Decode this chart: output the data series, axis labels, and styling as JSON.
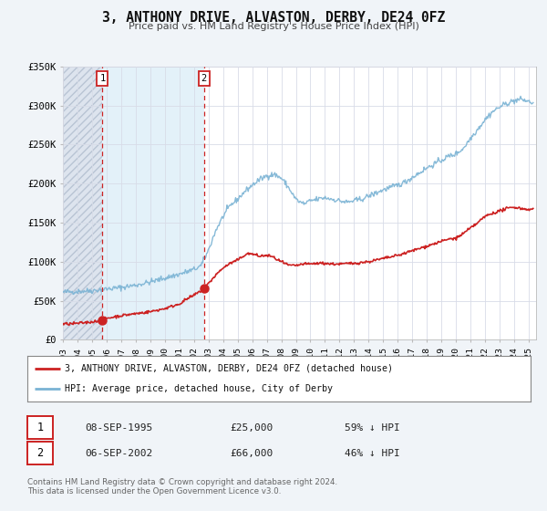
{
  "title": "3, ANTHONY DRIVE, ALVASTON, DERBY, DE24 0FZ",
  "subtitle": "Price paid vs. HM Land Registry's House Price Index (HPI)",
  "ylim": [
    0,
    350000
  ],
  "xlim_start": 1993.0,
  "xlim_end": 2025.5,
  "fig_bg": "#f0f4f8",
  "plot_bg": "#ffffff",
  "hpi_color": "#7ab3d4",
  "price_color": "#cc2222",
  "grid_color": "#d8dce8",
  "hatch_color": "#c8ccd8",
  "transaction1": {
    "date": "08-SEP-1995",
    "price": 25000,
    "hpi_pct": "59% ↓ HPI",
    "year": 1995.72
  },
  "transaction2": {
    "date": "06-SEP-2002",
    "price": 66000,
    "hpi_pct": "46% ↓ HPI",
    "year": 2002.69
  },
  "legend_label_price": "3, ANTHONY DRIVE, ALVASTON, DERBY, DE24 0FZ (detached house)",
  "legend_label_hpi": "HPI: Average price, detached house, City of Derby",
  "footnote": "Contains HM Land Registry data © Crown copyright and database right 2024.\nThis data is licensed under the Open Government Licence v3.0.",
  "yticks": [
    0,
    50000,
    100000,
    150000,
    200000,
    250000,
    300000,
    350000
  ],
  "ytick_labels": [
    "£0",
    "£50K",
    "£100K",
    "£150K",
    "£200K",
    "£250K",
    "£300K",
    "£350K"
  ],
  "xticks": [
    1993,
    1994,
    1995,
    1996,
    1997,
    1998,
    1999,
    2000,
    2001,
    2002,
    2003,
    2004,
    2005,
    2006,
    2007,
    2008,
    2009,
    2010,
    2011,
    2012,
    2013,
    2014,
    2015,
    2016,
    2017,
    2018,
    2019,
    2020,
    2021,
    2022,
    2023,
    2024,
    2025
  ],
  "marker1_value": 25000,
  "marker2_value": 66000
}
